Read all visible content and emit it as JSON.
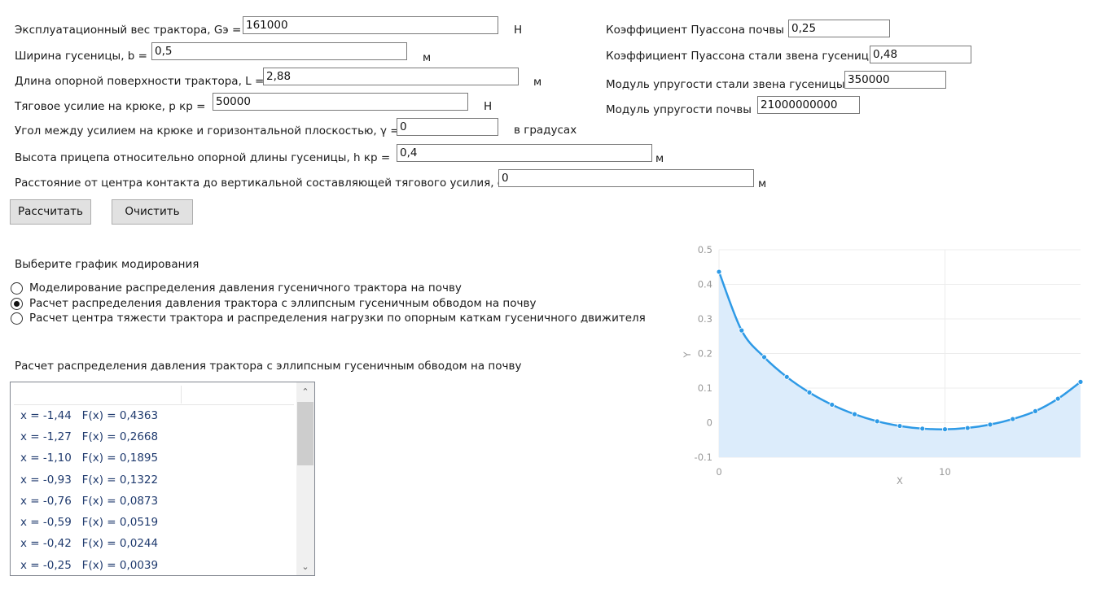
{
  "form": {
    "weight_label": "Эксплуатационный вес трактора, Gэ =",
    "weight_value": "161000",
    "weight_unit": "Н",
    "width_label": "Ширина гусеницы, b =",
    "width_value": "0,5",
    "width_unit": "м",
    "length_label": "Длина опорной поверхности трактора, L =",
    "length_value": "2,88",
    "length_unit": "м",
    "traction_label": "Тяговое усилие на крюке, р кр =",
    "traction_value": "50000",
    "traction_unit": "Н",
    "angle_label": "Угол между усилием на крюке и горизонтальной плоскостью, γ =",
    "angle_value": "0",
    "angle_unit": "в градусах",
    "height_label": "Высота прицепа относительно опорной длины гусеницы, h кр =",
    "height_value": "0,4",
    "height_unit": "м",
    "distance_label": "Расстояние  от центра контакта до вертикальной составляющей тягового усилия, с =",
    "distance_value": "0",
    "distance_unit": "м",
    "poisson_soil_label": "Коэффициент Пуассона почвы",
    "poisson_soil_value": "0,25",
    "poisson_steel_label": "Коэффициент Пуассона стали звена гусеницы",
    "poisson_steel_value": "0,48",
    "modulus_steel_label": "Модуль упругости стали звена гусеницы",
    "modulus_steel_value": "350000",
    "modulus_soil_label": "Модуль упругости почвы",
    "modulus_soil_value": "21000000000"
  },
  "buttons": {
    "calculate": "Рассчитать",
    "clear": "Очистить"
  },
  "graph_select": {
    "title": "Выберите график модирования",
    "options": [
      {
        "label": "Моделирование распределения давления гусеничного трактора на почву",
        "checked": false
      },
      {
        "label": "Расчет распределения давления трактора с эллипсным гусеничным обводом на почву",
        "checked": true
      },
      {
        "label": "Расчет центра тяжести трактора и распределения нагрузки по опорным каткам гусеничного движителя",
        "checked": false
      }
    ]
  },
  "results": {
    "title": "Расчет распределения давления трактора с эллипсным гусеничным обводом на почву",
    "rows": [
      "x = -1,44   F(x) = 0,4363",
      "x = -1,27   F(x) = 0,2668",
      "x = -1,10   F(x) = 0,1895",
      "x = -0,93   F(x) = 0,1322",
      "x = -0,76   F(x) = 0,0873",
      "x = -0,59   F(x) = 0,0519",
      "x = -0,42   F(x) = 0,0244",
      "x = -0,25   F(x) = 0,0039"
    ]
  },
  "chart_data": {
    "type": "area",
    "xlabel": "X",
    "ylabel": "Y",
    "xlim": [
      0,
      16
    ],
    "ylim": [
      -0.1,
      0.5
    ],
    "xticks": [
      "0",
      "10"
    ],
    "yticks": [
      "0.5",
      "0.4",
      "0.3",
      "0.2",
      "0.1",
      "0",
      "-0.1"
    ],
    "x": [
      0,
      1,
      2,
      3,
      4,
      5,
      6,
      7,
      8,
      9,
      10,
      11,
      12,
      13,
      14,
      15,
      16
    ],
    "values": [
      0.4363,
      0.2668,
      0.1895,
      0.1322,
      0.0873,
      0.0519,
      0.0244,
      0.0039,
      -0.0096,
      -0.0172,
      -0.0192,
      -0.0154,
      -0.0056,
      0.0104,
      0.0332,
      0.0692,
      0.118
    ],
    "grid": true,
    "line_color": "#2e9ae6",
    "fill_color": "#dcecfb"
  }
}
